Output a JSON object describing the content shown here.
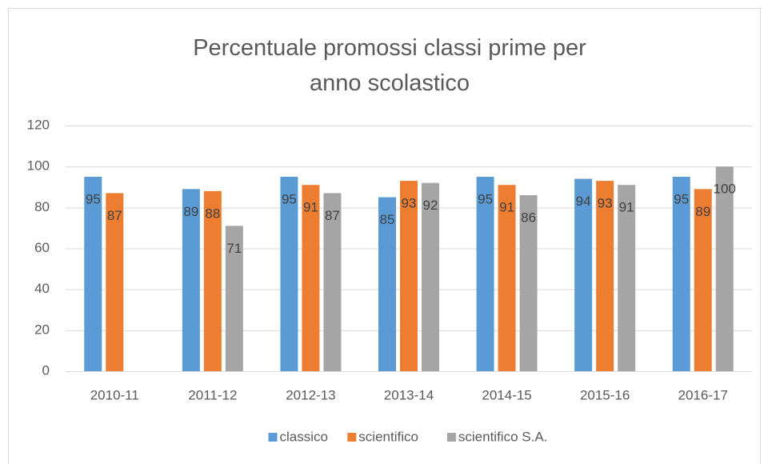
{
  "chart_data": {
    "type": "bar",
    "title": "Percentuale promossi classi prime per anno scolastico",
    "categories": [
      "2010-11",
      "2011-12",
      "2012-13",
      "2013-14",
      "2014-15",
      "2015-16",
      "2016-17"
    ],
    "series": [
      {
        "name": "classico",
        "color": "#5b9bd5",
        "values": [
          95,
          89,
          95,
          85,
          95,
          94,
          95
        ]
      },
      {
        "name": "scientifico",
        "color": "#ed7d31",
        "values": [
          87,
          88,
          91,
          93,
          91,
          93,
          89
        ]
      },
      {
        "name": "scientifico S.A.",
        "color": "#a5a5a5",
        "values": [
          null,
          71,
          87,
          92,
          86,
          91,
          100
        ]
      }
    ],
    "ylim": [
      0,
      120
    ],
    "yticks": [
      0,
      20,
      40,
      60,
      80,
      100,
      120
    ],
    "grid": true,
    "legend": "bottom"
  }
}
